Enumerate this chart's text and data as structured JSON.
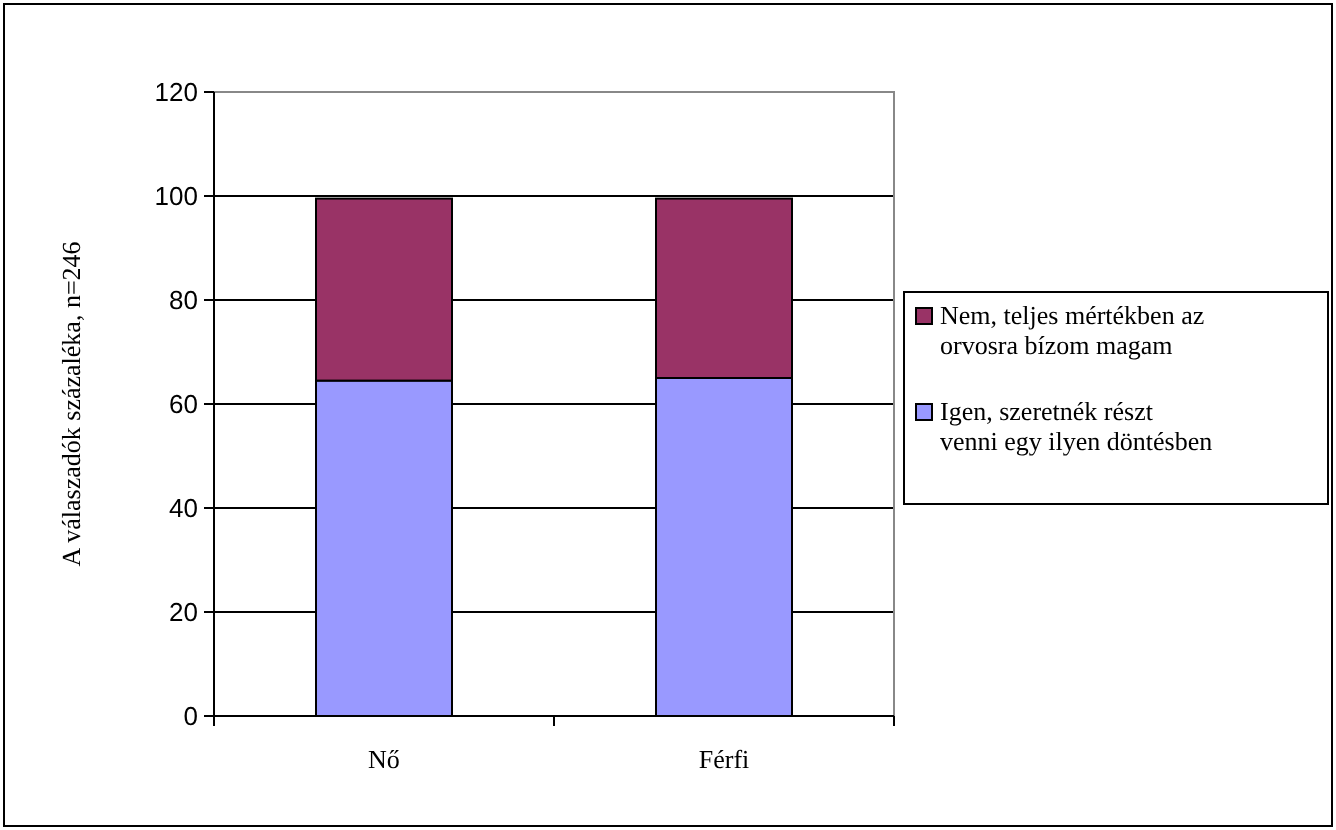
{
  "chart_data": {
    "type": "bar",
    "stacked": true,
    "ylabel": "A válaszadók százaléka, n=246",
    "categories": [
      "Nő",
      "Férfi"
    ],
    "series": [
      {
        "name": "Igen, szeretnék részt venni egy ilyen döntésben",
        "color": "#9999ff",
        "values": [
          64.5,
          65
        ]
      },
      {
        "name": "Nem, teljes mértékben az orvosra bízom magam",
        "color": "#993366",
        "values": [
          35,
          34.5
        ]
      }
    ],
    "ylim": [
      0,
      120
    ],
    "yticks": [
      0,
      20,
      40,
      60,
      80,
      100,
      120
    ],
    "grid": "y",
    "legend": "right"
  }
}
